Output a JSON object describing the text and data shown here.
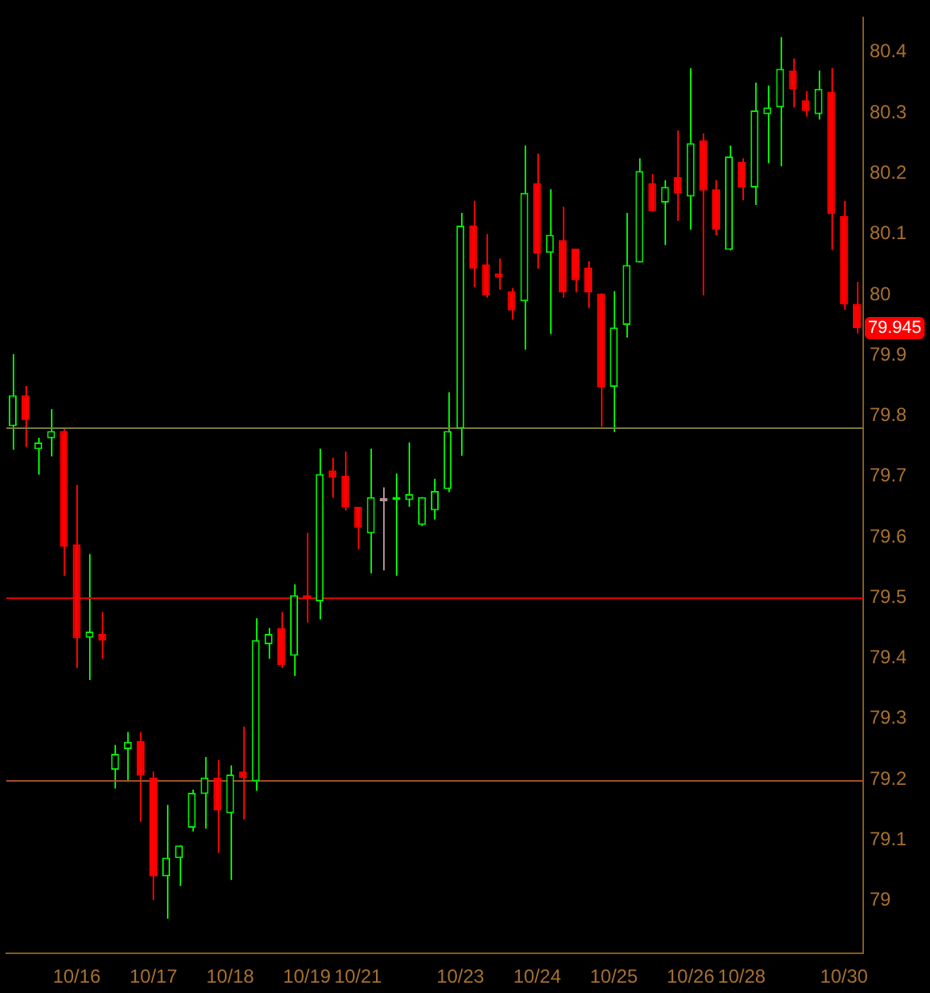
{
  "chart_data": {
    "type": "candlestick",
    "categories": [
      null,
      null,
      null,
      null,
      null,
      "10/16",
      null,
      null,
      null,
      null,
      null,
      "10/17",
      null,
      null,
      null,
      null,
      null,
      "10/18",
      null,
      null,
      null,
      null,
      null,
      "10/19",
      null,
      null,
      null,
      "10/21",
      null,
      null,
      null,
      null,
      null,
      null,
      null,
      "10/23",
      null,
      null,
      null,
      null,
      null,
      "10/24",
      null,
      null,
      null,
      null,
      null,
      "10/25",
      null,
      null,
      null,
      null,
      null,
      "10/26",
      null,
      null,
      null,
      "10/28",
      null,
      null,
      null,
      null,
      null,
      null,
      null,
      "10/30",
      null
    ],
    "ohlc": [
      [
        79.783,
        79.902,
        79.744,
        79.834
      ],
      [
        79.834,
        79.849,
        79.749,
        79.793
      ],
      [
        79.745,
        79.764,
        79.703,
        79.756
      ],
      [
        79.763,
        79.811,
        79.733,
        79.775
      ],
      [
        79.775,
        79.78,
        79.536,
        79.584
      ],
      [
        79.588,
        79.686,
        79.384,
        79.433
      ],
      [
        79.434,
        79.572,
        79.364,
        79.444
      ],
      [
        79.44,
        79.476,
        79.399,
        79.429
      ],
      [
        79.216,
        79.257,
        79.185,
        79.242
      ],
      [
        79.25,
        79.278,
        79.196,
        79.262
      ],
      [
        79.263,
        79.278,
        79.13,
        79.206
      ],
      [
        79.203,
        79.213,
        79.001,
        79.04
      ],
      [
        79.04,
        79.158,
        78.97,
        79.071
      ],
      [
        79.07,
        79.091,
        79.024,
        79.091
      ],
      [
        79.12,
        79.183,
        79.114,
        79.178
      ],
      [
        79.176,
        79.237,
        79.119,
        79.203
      ],
      [
        79.203,
        79.232,
        79.079,
        79.149
      ],
      [
        79.144,
        79.223,
        79.034,
        79.208
      ],
      [
        79.213,
        79.287,
        79.134,
        79.202
      ],
      [
        79.197,
        79.466,
        79.181,
        79.43
      ],
      [
        79.423,
        79.45,
        79.399,
        79.44
      ],
      [
        79.45,
        79.476,
        79.384,
        79.389
      ],
      [
        79.404,
        79.522,
        79.371,
        79.504
      ],
      [
        79.504,
        79.607,
        79.459,
        79.498
      ],
      [
        79.494,
        79.746,
        79.464,
        79.704
      ],
      [
        79.71,
        79.731,
        79.665,
        79.698
      ],
      [
        79.701,
        79.741,
        79.644,
        79.649
      ],
      [
        79.65,
        79.65,
        79.58,
        79.615
      ],
      [
        79.606,
        79.746,
        79.54,
        79.666
      ],
      [
        79.659,
        79.682,
        79.545,
        79.659
      ],
      [
        79.661,
        79.705,
        79.536,
        79.666
      ],
      [
        79.661,
        79.756,
        79.65,
        79.671
      ],
      [
        79.62,
        79.666,
        79.618,
        79.666
      ],
      [
        79.644,
        79.696,
        79.629,
        79.676
      ],
      [
        79.679,
        79.839,
        79.674,
        79.775
      ],
      [
        79.779,
        80.135,
        79.734,
        80.114
      ],
      [
        80.114,
        80.155,
        80.013,
        80.043
      ],
      [
        80.05,
        80.1,
        79.995,
        79.999
      ],
      [
        80.035,
        80.06,
        80.008,
        80.028
      ],
      [
        80.006,
        80.011,
        79.959,
        79.974
      ],
      [
        79.989,
        80.246,
        79.909,
        80.168
      ],
      [
        80.184,
        80.233,
        80.043,
        80.068
      ],
      [
        80.069,
        80.174,
        79.935,
        80.099
      ],
      [
        80.09,
        80.145,
        79.995,
        80.004
      ],
      [
        80.076,
        80.076,
        80.004,
        80.024
      ],
      [
        80.045,
        80.055,
        79.978,
        80.004
      ],
      [
        80.002,
        80.002,
        79.782,
        79.847
      ],
      [
        79.848,
        80.006,
        79.773,
        79.946
      ],
      [
        79.95,
        80.135,
        79.929,
        80.049
      ],
      [
        80.053,
        80.225,
        80.053,
        80.204
      ],
      [
        80.184,
        80.199,
        80.138,
        80.138
      ],
      [
        80.152,
        80.189,
        80.082,
        80.178
      ],
      [
        80.194,
        80.271,
        80.122,
        80.167
      ],
      [
        80.162,
        80.374,
        80.107,
        80.25
      ],
      [
        80.255,
        80.266,
        79.999,
        80.172
      ],
      [
        80.174,
        80.189,
        80.098,
        80.107
      ],
      [
        80.074,
        80.246,
        80.073,
        80.228
      ],
      [
        80.219,
        80.225,
        80.156,
        80.177
      ],
      [
        80.177,
        80.35,
        80.148,
        80.304
      ],
      [
        80.298,
        80.345,
        80.217,
        80.309
      ],
      [
        80.309,
        80.425,
        80.212,
        80.373
      ],
      [
        80.37,
        80.39,
        80.309,
        80.339
      ],
      [
        80.321,
        80.336,
        80.294,
        80.303
      ],
      [
        80.298,
        80.37,
        80.289,
        80.34
      ],
      [
        80.335,
        80.374,
        80.074,
        80.133
      ],
      [
        80.13,
        80.155,
        79.975,
        79.984
      ],
      [
        79.985,
        80.021,
        79.936,
        79.945
      ]
    ],
    "ylim": [
      78.913,
      80.457
    ],
    "yticks": [
      79,
      79.1,
      79.2,
      79.3,
      79.4,
      79.5,
      79.6,
      79.7,
      79.8,
      79.9,
      80,
      80.1,
      80.2,
      80.3,
      80.4
    ],
    "ref_lines": [
      {
        "axis": "y",
        "value": 79.2,
        "color": "#a0502a"
      },
      {
        "axis": "y",
        "value": 79.5,
        "color": "#e00000"
      },
      {
        "axis": "y",
        "value": 79.78,
        "color": "#7a7a40"
      }
    ],
    "annotations": [
      {
        "text": "79.945",
        "y": 79.945
      }
    ],
    "grid": false,
    "legend": false
  }
}
